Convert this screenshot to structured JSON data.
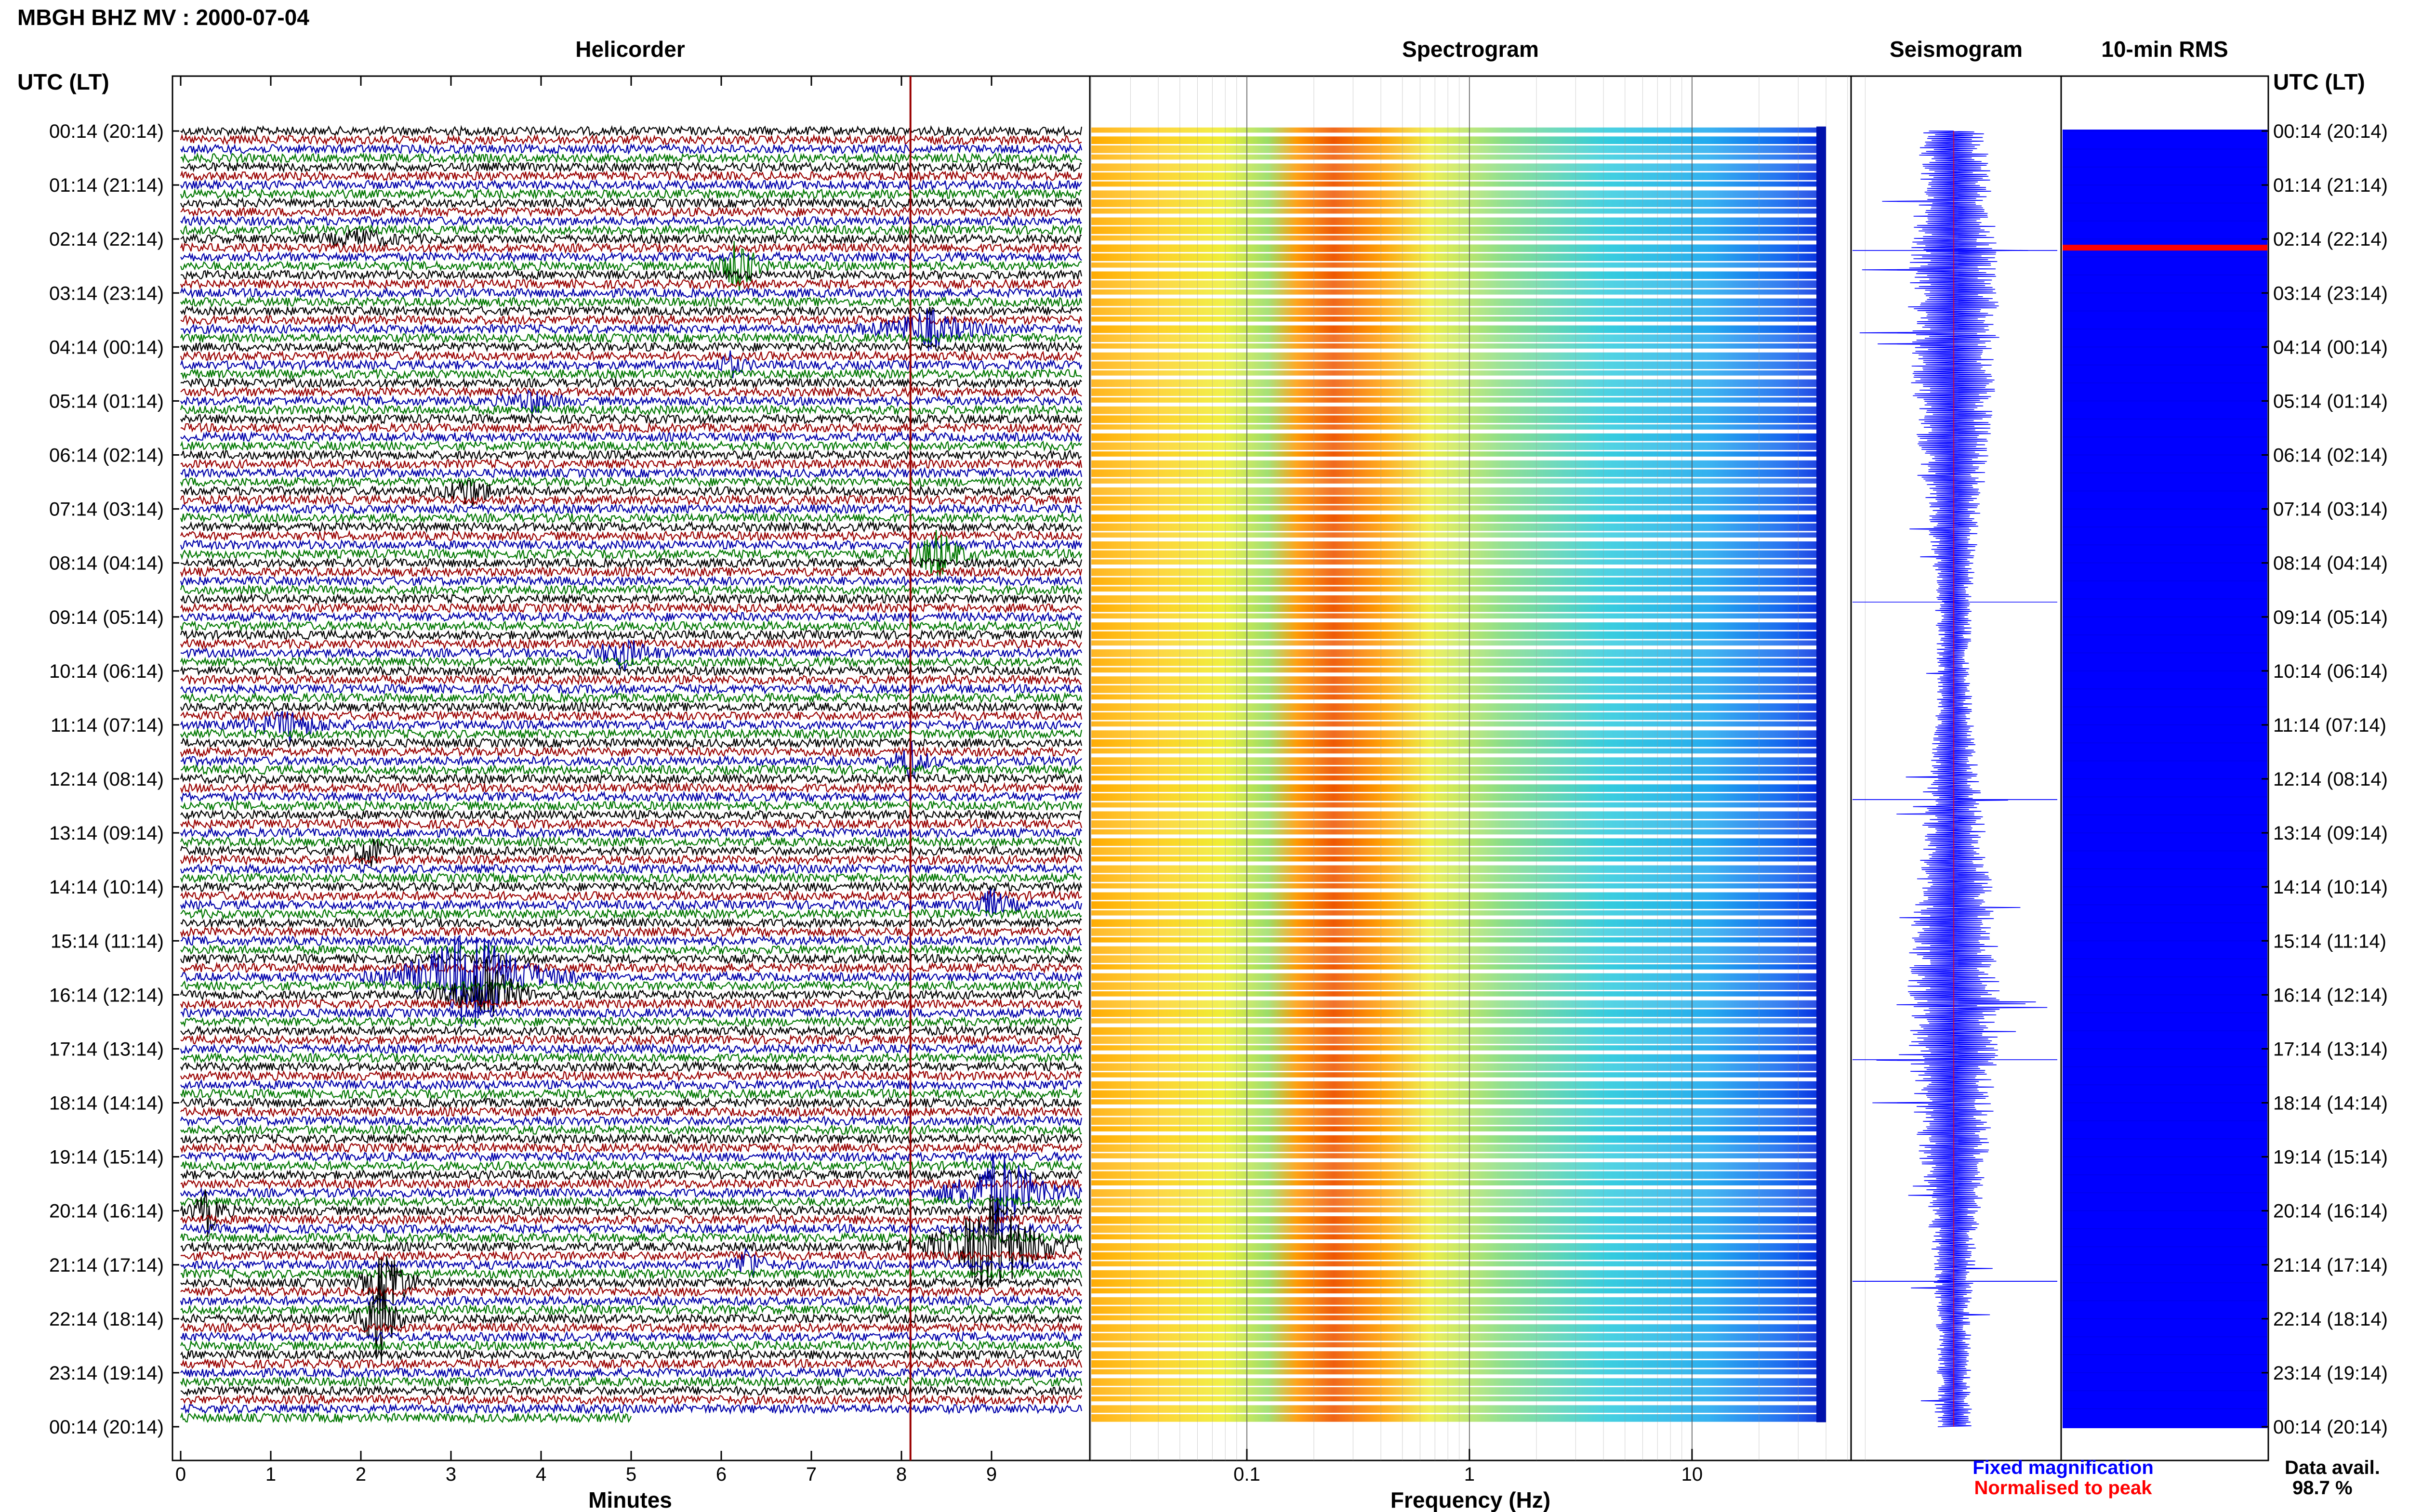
{
  "header": {
    "title": "MBGH BHZ MV : 2000-07-04"
  },
  "panels": {
    "helicorder": "Helicorder",
    "spectrogram": "Spectrogram",
    "seismogram": "Seismogram",
    "rms": "10-min RMS"
  },
  "axis_labels": {
    "time_left": "UTC (LT)",
    "time_right": "UTC (LT)",
    "helicorder_x": "Minutes",
    "spectrogram_x": "Frequency (Hz)"
  },
  "time_ticks": [
    "00:14 (20:14)",
    "01:14 (21:14)",
    "02:14 (22:14)",
    "03:14 (23:14)",
    "04:14 (00:14)",
    "05:14 (01:14)",
    "06:14 (02:14)",
    "07:14 (03:14)",
    "08:14 (04:14)",
    "09:14 (05:14)",
    "10:14 (06:14)",
    "11:14 (07:14)",
    "12:14 (08:14)",
    "13:14 (09:14)",
    "14:14 (10:14)",
    "15:14 (11:14)",
    "16:14 (12:14)",
    "17:14 (13:14)",
    "18:14 (14:14)",
    "19:14 (15:14)",
    "20:14 (16:14)",
    "21:14 (17:14)",
    "22:14 (18:14)",
    "23:14 (19:14)",
    "00:14 (20:14)"
  ],
  "minute_ticks": [
    "0",
    "1",
    "2",
    "3",
    "4",
    "5",
    "6",
    "7",
    "8",
    "9"
  ],
  "frequency_ticks": [
    "0.1",
    "1",
    "10"
  ],
  "legend": {
    "fixed": "Fixed magnification",
    "normalised": "Normalised to peak",
    "data_avail_label": "Data avail.",
    "data_avail_value": "98.7 %"
  },
  "colors": {
    "helicorder_traces": [
      "#000000",
      "#990000",
      "#0000aa",
      "#007700"
    ],
    "seismogram": "#0000ff",
    "rms_fill": "#0000ff",
    "rms_marker": "#ff0000",
    "marker_line": "#990000",
    "fixed_text": "#0000ff",
    "normalised_text": "#ff0000"
  },
  "chart_data": {
    "type": "helicorder",
    "x_minutes": [
      0,
      10
    ],
    "frequency_hz_range": [
      0.02,
      40
    ],
    "frequency_scale": "log",
    "spectral_peak_hz": [
      0.2,
      0.6
    ],
    "rms_spike_time": "02:14",
    "marker_minute": 8.1,
    "data_availability_percent": 98.7
  }
}
